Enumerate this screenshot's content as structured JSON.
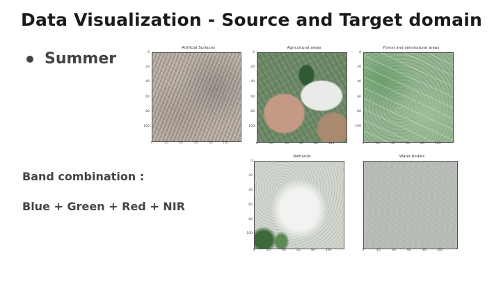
{
  "slide": {
    "title": "Data Visualization - Source and Target domain",
    "bullet": "Summer",
    "band_label": "Band combination :",
    "band_value": "Blue + Green + Red + NIR"
  },
  "plots": [
    {
      "title": "Artificial Surfaces",
      "y_ticks": [
        "0",
        "20",
        "40",
        "60",
        "80",
        "100"
      ],
      "x_ticks": [
        "0",
        "20",
        "40",
        "60",
        "80",
        "100"
      ],
      "texture": "urban-gray"
    },
    {
      "title": "Agricultural areas",
      "y_ticks": [
        "0",
        "20",
        "40",
        "60",
        "80",
        "100"
      ],
      "x_ticks": [
        "0",
        "20",
        "40",
        "60",
        "80",
        "100"
      ],
      "texture": "fields-green-brown"
    },
    {
      "title": "Forest and seminatural areas",
      "y_ticks": [
        "0",
        "20",
        "40",
        "60",
        "80",
        "100"
      ],
      "x_ticks": [
        "0",
        "20",
        "40",
        "60",
        "80",
        "100"
      ],
      "texture": "forest-green"
    },
    {
      "title": "Wetlands",
      "y_ticks": [
        "0",
        "20",
        "40",
        "60",
        "80",
        "100"
      ],
      "x_ticks": [
        "0",
        "20",
        "40",
        "60",
        "80",
        "100"
      ],
      "texture": "pale-gray-green"
    },
    {
      "title": "Water bodies",
      "y_ticks": [],
      "x_ticks": [
        "0",
        "20",
        "40",
        "60",
        "80",
        "100"
      ],
      "texture": "gray-ripple"
    }
  ],
  "colors": {
    "title": "#1b1b1b",
    "text": "#444444",
    "background": "#ffffff"
  }
}
